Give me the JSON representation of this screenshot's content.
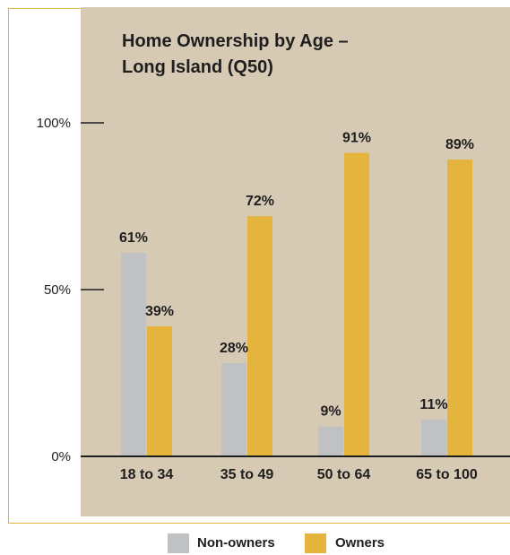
{
  "colors": {
    "panel": "#d7cab5",
    "axis": "#1e1e1e",
    "non_owners": "#c0c1c3",
    "owners": "#e4b43c",
    "text": "#1e1e1e"
  },
  "chart_data": {
    "type": "bar",
    "title": [
      "Home Ownership by Age –",
      "Long Island (Q50)"
    ],
    "categories": [
      "18 to 34",
      "35 to 49",
      "50 to 64",
      "65 to 100"
    ],
    "series": [
      {
        "name": "Non-owners",
        "values": [
          61,
          28,
          9,
          11
        ],
        "labels": [
          "61%",
          "28%",
          "9%",
          "11%"
        ],
        "color": "#c0c1c3"
      },
      {
        "name": "Owners",
        "values": [
          39,
          72,
          91,
          89
        ],
        "labels": [
          "39%",
          "72%",
          "91%",
          "89%"
        ],
        "color": "#e4b43c"
      }
    ],
    "yticks": [
      {
        "value": 100,
        "label": "100%"
      },
      {
        "value": 50,
        "label": "50%"
      },
      {
        "value": 0,
        "label": "0%"
      }
    ],
    "ylim": [
      0,
      100
    ],
    "xlabel": "",
    "ylabel": "",
    "grid": false,
    "legend": "bottom-center"
  },
  "legend": [
    {
      "label": "Non-owners",
      "icon": "gray-square-swatch"
    },
    {
      "label": "Owners",
      "icon": "gold-square-swatch"
    }
  ]
}
